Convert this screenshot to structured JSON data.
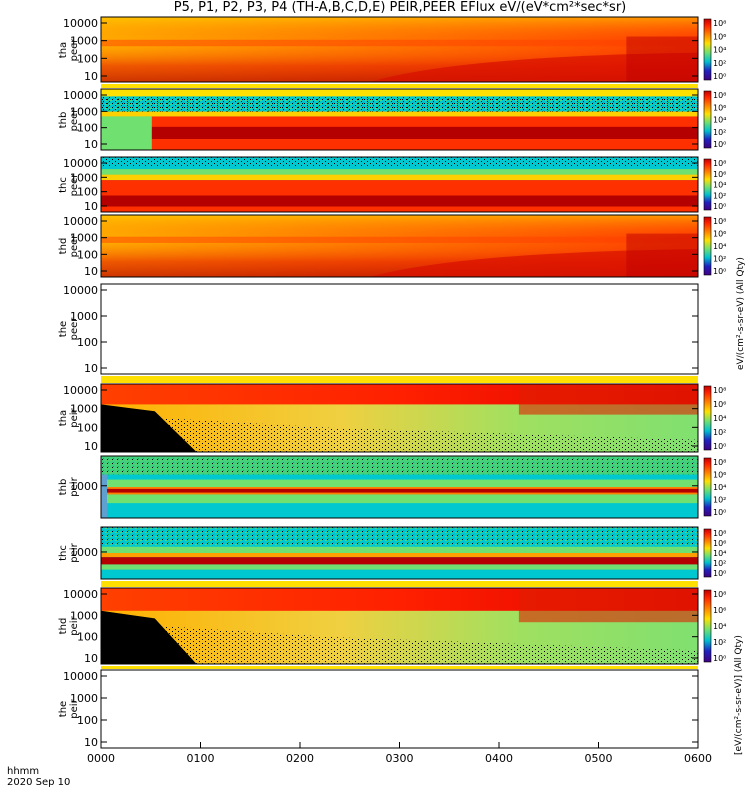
{
  "title": "P5, P1, P2, P3, P4 (TH-A,B,C,D,E) PEIR,PEER EFlux eV/(eV*cm²*sec*sr)",
  "footer": {
    "time_label": "hhmm",
    "date": "2020 Sep 10"
  },
  "x_axis": {
    "ticks": [
      "0000",
      "0100",
      "0200",
      "0300",
      "0400",
      "0500",
      "0600"
    ]
  },
  "colorbar_unit_upper": "eV/(cm²-s-sr-eV) (All Qty)",
  "colorbar_unit_lower": "[eV/(cm²-s-sr-eV)] (All Qty)",
  "colorbar_ticks": [
    "10⁸",
    "10⁶",
    "10⁴",
    "10²",
    "10⁰"
  ],
  "colors": {
    "high": "#b40000",
    "mid_high": "#ff3c00",
    "mid": "#ffc000",
    "mid_low": "#70e070",
    "low": "#00c0d0",
    "lowest": "#2020c0",
    "black": "#000000"
  },
  "chart_data": {
    "type": "heatmap",
    "x_range_hhmm": [
      "0000",
      "0600"
    ],
    "panels": [
      {
        "probe": "tha",
        "label": "tha peer",
        "yticks": [
          "10000",
          "1000",
          "100",
          "10"
        ],
        "has_data": true,
        "style": "peer-a"
      },
      {
        "probe": "thb",
        "label": "thb peer",
        "yticks": [
          "10000",
          "1000",
          "100",
          "10"
        ],
        "has_data": true,
        "style": "peer-b"
      },
      {
        "probe": "thc",
        "label": "thc peer",
        "yticks": [
          "10000",
          "1000",
          "100",
          "10"
        ],
        "has_data": true,
        "style": "peer-c"
      },
      {
        "probe": "thd",
        "label": "thd peer",
        "yticks": [
          "10000",
          "1000",
          "100",
          "10"
        ],
        "has_data": true,
        "style": "peer-a"
      },
      {
        "probe": "the",
        "label": "the peer",
        "yticks": [
          "10000",
          "1000",
          "100",
          "10"
        ],
        "has_data": false,
        "style": "empty"
      },
      {
        "probe": "tha",
        "label": "tha peir",
        "yticks": [
          "10000",
          "1000",
          "100",
          "10"
        ],
        "has_data": true,
        "style": "peir-a"
      },
      {
        "probe": "thb",
        "label": "thb peir",
        "yticks": [
          "1000"
        ],
        "has_data": true,
        "style": "peir-b"
      },
      {
        "probe": "thc",
        "label": "thc peir",
        "yticks": [
          "1000"
        ],
        "has_data": true,
        "style": "peir-c"
      },
      {
        "probe": "thd",
        "label": "thd peir",
        "yticks": [
          "10000",
          "1000",
          "100",
          "10"
        ],
        "has_data": true,
        "style": "peir-a"
      },
      {
        "probe": "the",
        "label": "the peir",
        "yticks": [
          "10000",
          "1000",
          "100",
          "10"
        ],
        "has_data": false,
        "style": "empty"
      }
    ]
  }
}
